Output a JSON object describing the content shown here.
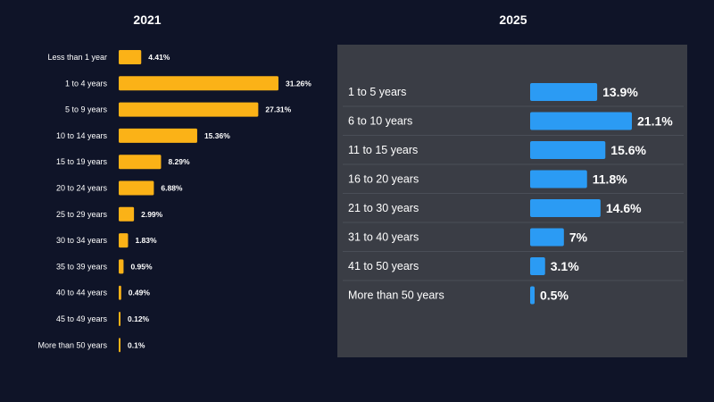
{
  "chart_data": [
    {
      "type": "bar",
      "orientation": "horizontal",
      "title": "2021",
      "categories": [
        "Less than 1 year",
        "1 to 4 years",
        "5 to 9 years",
        "10 to 14 years",
        "15 to 19 years",
        "20 to 24 years",
        "25 to 29 years",
        "30 to 34 years",
        "35 to 39 years",
        "40 to 44 years",
        "45 to 49 years",
        "More than 50 years"
      ],
      "values": [
        4.41,
        31.26,
        27.31,
        15.36,
        8.29,
        6.88,
        2.99,
        1.83,
        0.95,
        0.49,
        0.12,
        0.1
      ],
      "value_labels": [
        "4.41%",
        "31.26%",
        "27.31%",
        "15.36%",
        "8.29%",
        "6.88%",
        "2.99%",
        "1.83%",
        "0.95%",
        "0.49%",
        "0.12%",
        "0.1%"
      ],
      "bar_color": "#fbb217",
      "grid": false
    },
    {
      "type": "bar",
      "orientation": "horizontal",
      "title": "2025",
      "categories": [
        "1 to 5 years",
        "6 to 10 years",
        "11 to 15 years",
        "16 to 20 years",
        "21 to 30 years",
        "31 to 40 years",
        "41 to 50 years",
        "More than 50 years"
      ],
      "values": [
        13.9,
        21.1,
        15.6,
        11.8,
        14.6,
        7,
        3.1,
        0.5
      ],
      "value_labels": [
        "13.9%",
        "21.1%",
        "15.6%",
        "11.8%",
        "14.6%",
        "7%",
        "3.1%",
        "0.5%"
      ],
      "bar_color": "#2b9bf4",
      "background": "#3a3d45",
      "grid": false
    }
  ]
}
